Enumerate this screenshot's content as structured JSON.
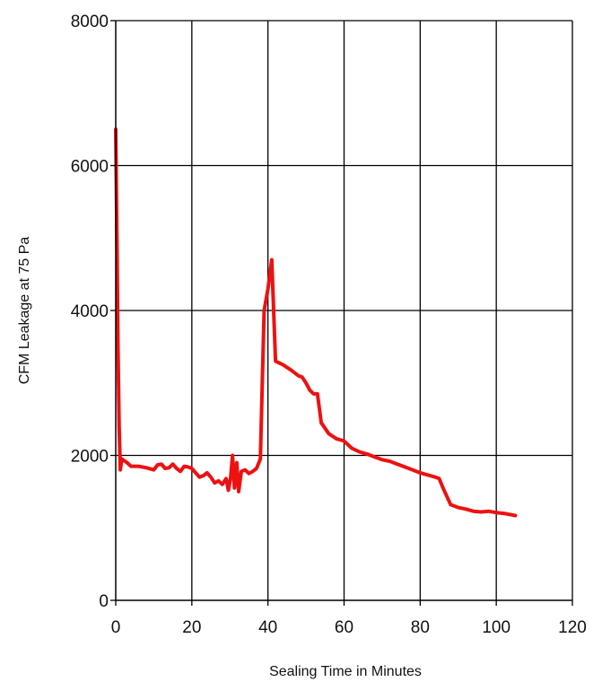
{
  "chart_data": {
    "type": "line",
    "title": "",
    "xlabel": "Sealing Time in Minutes",
    "ylabel": "CFM Leakage at 75 Pa",
    "xlim": [
      0,
      120
    ],
    "ylim": [
      0,
      8000
    ],
    "x_ticks": [
      "0",
      "20",
      "40",
      "60",
      "80",
      "100",
      "120"
    ],
    "y_ticks": [
      "0",
      "2000",
      "4000",
      "6000",
      "8000"
    ],
    "grid": true,
    "legend": "none",
    "series": [
      {
        "color": "#ee1111",
        "points": [
          [
            0,
            6500
          ],
          [
            0.3,
            5000
          ],
          [
            0.6,
            3500
          ],
          [
            0.9,
            2400
          ],
          [
            1.2,
            1800
          ],
          [
            1.6,
            1950
          ],
          [
            3,
            1900
          ],
          [
            4,
            1850
          ],
          [
            6,
            1850
          ],
          [
            8,
            1830
          ],
          [
            10,
            1800
          ],
          [
            11,
            1870
          ],
          [
            12,
            1880
          ],
          [
            13,
            1820
          ],
          [
            14,
            1830
          ],
          [
            15,
            1880
          ],
          [
            16,
            1820
          ],
          [
            17,
            1780
          ],
          [
            18,
            1850
          ],
          [
            19,
            1840
          ],
          [
            20,
            1820
          ],
          [
            21,
            1760
          ],
          [
            22,
            1700
          ],
          [
            23,
            1720
          ],
          [
            24,
            1760
          ],
          [
            25,
            1700
          ],
          [
            26,
            1620
          ],
          [
            27,
            1650
          ],
          [
            28,
            1600
          ],
          [
            29,
            1680
          ],
          [
            29.6,
            1520
          ],
          [
            30.2,
            1700
          ],
          [
            30.7,
            2000
          ],
          [
            31.2,
            1550
          ],
          [
            31.8,
            1900
          ],
          [
            32.3,
            1500
          ],
          [
            33,
            1780
          ],
          [
            34,
            1800
          ],
          [
            35,
            1750
          ],
          [
            36,
            1780
          ],
          [
            37,
            1820
          ],
          [
            38,
            1950
          ],
          [
            39,
            4000
          ],
          [
            40,
            4300
          ],
          [
            41,
            4700
          ],
          [
            42,
            3300
          ],
          [
            44,
            3250
          ],
          [
            46,
            3180
          ],
          [
            48,
            3100
          ],
          [
            49,
            3080
          ],
          [
            50,
            3000
          ],
          [
            51,
            2900
          ],
          [
            52,
            2850
          ],
          [
            53,
            2850
          ],
          [
            54,
            2450
          ],
          [
            56,
            2300
          ],
          [
            58,
            2230
          ],
          [
            60,
            2200
          ],
          [
            62,
            2100
          ],
          [
            64,
            2050
          ],
          [
            66,
            2020
          ],
          [
            68,
            1980
          ],
          [
            70,
            1940
          ],
          [
            72,
            1920
          ],
          [
            74,
            1880
          ],
          [
            76,
            1840
          ],
          [
            78,
            1800
          ],
          [
            80,
            1760
          ],
          [
            82,
            1730
          ],
          [
            84,
            1700
          ],
          [
            85,
            1680
          ],
          [
            86,
            1550
          ],
          [
            88,
            1320
          ],
          [
            90,
            1280
          ],
          [
            92,
            1260
          ],
          [
            94,
            1230
          ],
          [
            96,
            1220
          ],
          [
            98,
            1230
          ],
          [
            100,
            1210
          ],
          [
            102,
            1200
          ],
          [
            104,
            1180
          ],
          [
            105,
            1170
          ]
        ]
      }
    ]
  }
}
